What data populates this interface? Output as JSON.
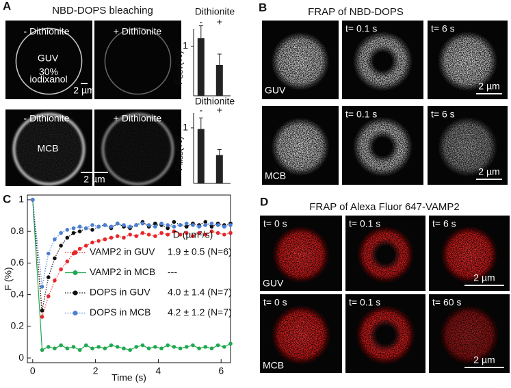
{
  "panel_labels": [
    "A",
    "B",
    "C",
    "D"
  ],
  "panel_a": {
    "title": "NBD-DOPS bleaching",
    "top": {
      "labels": [
        "- Dithionite",
        "+ Dithionite"
      ],
      "sample": "GUV",
      "note": [
        "30%",
        "iodixanol"
      ],
      "scale": "2 µm"
    },
    "bottom": {
      "labels": [
        "- Dithionite",
        "+ Dithionite"
      ],
      "sample": "MCB",
      "scale": "2 µm"
    }
  },
  "panel_b": {
    "title": "FRAP of NBD-DOPS",
    "rows": [
      {
        "sample": "GUV",
        "times": [
          "t= 0.1 s",
          "t= 6 s"
        ],
        "scale": "2 µm"
      },
      {
        "sample": "MCB",
        "times": [
          "t= 0.1 s",
          "t= 6 s"
        ],
        "scale": "2 µm"
      }
    ]
  },
  "panel_d": {
    "title": "FRAP of Alexa Fluor 647-VAMP2",
    "rows": [
      {
        "sample": "GUV",
        "times": [
          "t= 0 s",
          "t= 0.1 s",
          "t= 6 s"
        ],
        "scale": "2 µm"
      },
      {
        "sample": "MCB",
        "times": [
          "t= 0 s",
          "t= 0.1 s",
          "t= 60 s"
        ],
        "scale": "2 µm"
      }
    ]
  },
  "chart_data": [
    {
      "type": "bar",
      "title": "Dithionite",
      "categories": [
        "-",
        "+"
      ],
      "values": [
        1.16,
        0.62
      ],
      "errors": [
        0.25,
        0.22
      ],
      "ylabel": "F",
      "ylabel_sub": "GUV",
      "ylabel_unit": "(%)",
      "ylim": [
        0,
        1.35
      ],
      "yticks": [
        1
      ],
      "color": "#222222"
    },
    {
      "type": "bar",
      "title": "Dithionite",
      "categories": [
        "-",
        "+"
      ],
      "values": [
        0.98,
        0.51
      ],
      "errors": [
        0.2,
        0.1
      ],
      "ylabel": "F",
      "ylabel_sub": "MCB",
      "ylabel_unit": "(%)",
      "ylim": [
        0,
        1.27
      ],
      "yticks": [
        1
      ],
      "color": "#222222"
    },
    {
      "type": "line",
      "xlabel": "Time (s)",
      "ylabel": "F (%)",
      "x": [
        0,
        0.3,
        0.5,
        0.7,
        0.9,
        1.1,
        1.3,
        1.5,
        1.7,
        1.9,
        2.1,
        2.3,
        2.5,
        2.7,
        2.9,
        3.1,
        3.3,
        3.5,
        3.7,
        3.9,
        4.1,
        4.3,
        4.5,
        4.7,
        4.9,
        5.1,
        5.3,
        5.5,
        5.7,
        5.9,
        6.1,
        6.3
      ],
      "series": [
        {
          "name": "VAMP2 in GUV",
          "color": "#e8262a",
          "linestyle": "dotted",
          "values": [
            1,
            0.26,
            0.39,
            0.49,
            0.56,
            0.61,
            0.66,
            0.69,
            0.71,
            0.73,
            0.74,
            0.75,
            0.76,
            0.77,
            0.76,
            0.78,
            0.77,
            0.79,
            0.78,
            0.77,
            0.79,
            0.78,
            0.8,
            0.78,
            0.79,
            0.77,
            0.79,
            0.78,
            0.8,
            0.79,
            0.78,
            0.79
          ]
        },
        {
          "name": "VAMP2 in MCB",
          "color": "#1fa84f",
          "linestyle": "solid",
          "values": [
            1,
            0.05,
            0.07,
            0.06,
            0.08,
            0.06,
            0.07,
            0.05,
            0.08,
            0.06,
            0.07,
            0.06,
            0.08,
            0.07,
            0.06,
            0.05,
            0.07,
            0.08,
            0.06,
            0.07,
            0.06,
            0.08,
            0.07,
            0.06,
            0.07,
            0.08,
            0.06,
            0.07,
            0.06,
            0.08,
            0.07,
            0.09
          ]
        },
        {
          "name": "DOPS in GUV",
          "color": "#111111",
          "linestyle": "dotted",
          "values": [
            1,
            0.3,
            0.51,
            0.63,
            0.71,
            0.76,
            0.79,
            0.8,
            0.82,
            0.81,
            0.83,
            0.84,
            0.82,
            0.85,
            0.83,
            0.82,
            0.84,
            0.86,
            0.83,
            0.85,
            0.84,
            0.82,
            0.86,
            0.84,
            0.83,
            0.85,
            0.84,
            0.86,
            0.83,
            0.85,
            0.84,
            0.85
          ]
        },
        {
          "name": "DOPS in MCB",
          "color": "#4a7fd4",
          "linestyle": "dotted",
          "values": [
            1,
            0.45,
            0.66,
            0.75,
            0.79,
            0.81,
            0.82,
            0.83,
            0.82,
            0.84,
            0.83,
            0.84,
            0.83,
            0.85,
            0.84,
            0.83,
            0.84,
            0.85,
            0.84,
            0.83,
            0.85,
            0.84,
            0.83,
            0.84,
            0.85,
            0.84,
            0.83,
            0.84,
            0.85,
            0.84,
            0.83,
            0.84
          ]
        }
      ],
      "legend_header": "D (µm²/s)",
      "legend_values": [
        "1.9 ± 0.5 (N=6)",
        "---",
        "4.0 ± 1.4 (N=7)",
        "4.2 ± 1.2 (N=7)"
      ],
      "xlim": [
        -0.17,
        6.3
      ],
      "ylim": [
        -0.03,
        1.03
      ],
      "xticks": [
        0,
        2,
        4,
        6
      ],
      "yticks": [
        0,
        0.2,
        0.4,
        0.6,
        0.8,
        1
      ]
    }
  ]
}
